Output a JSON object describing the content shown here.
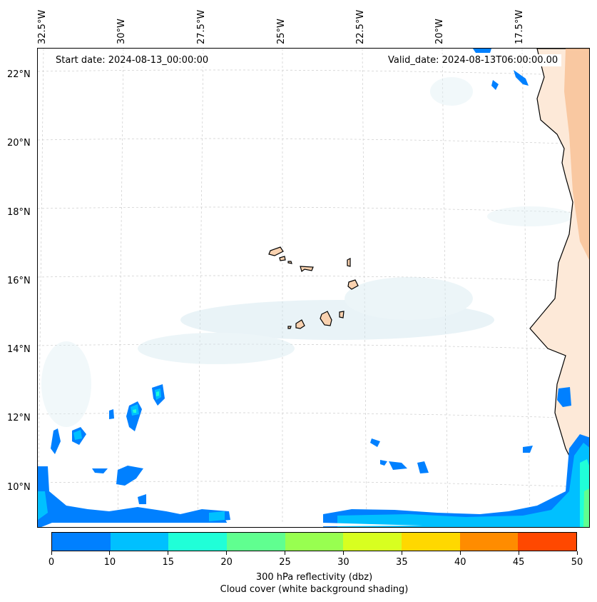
{
  "map": {
    "start_date_text": "Start date: 2024-08-13_00:00:00",
    "valid_date_text": "Valid_date: 2024-08-13T06:00:00.00",
    "lon_labels": [
      "32.5°W",
      "30°W",
      "27.5°W",
      "25°W",
      "22.5°W",
      "20°W",
      "17.5°W"
    ],
    "lat_labels": [
      "22°N",
      "20°N",
      "18°N",
      "16°N",
      "14°N",
      "12°N",
      "10°N"
    ],
    "extent": {
      "lon_min": -32.6,
      "lon_max": -15.5,
      "lat_min": 8.9,
      "lat_max": 22.8
    },
    "land_color": "#f9d2b0",
    "ocean_color": "#ffffff",
    "cloud_color": "#d9ebf2"
  },
  "colorbar": {
    "levels": [
      0,
      10,
      15,
      20,
      25,
      30,
      35,
      40,
      45,
      50
    ],
    "tick_labels": [
      "0",
      "10",
      "15",
      "20",
      "25",
      "30",
      "35",
      "40",
      "45",
      "50"
    ],
    "colors": [
      "#0080ff",
      "#00c0ff",
      "#20ffd8",
      "#60ff90",
      "#98ff50",
      "#d8ff20",
      "#ffd800",
      "#ff8c00",
      "#ff4800"
    ],
    "label_line1": "300 hPa reflectivity (dbz)",
    "label_line2": "Cloud cover (white background shading)"
  }
}
